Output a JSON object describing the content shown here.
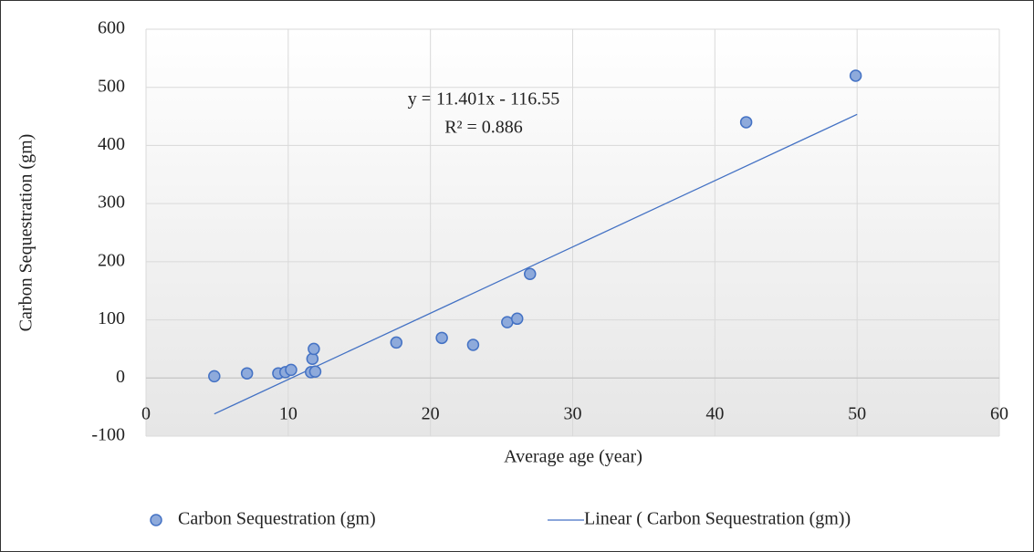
{
  "chart_data": {
    "type": "scatter",
    "x_label": "Average age (year)",
    "y_label": "Carbon Sequestration (gm)",
    "series": [
      {
        "name": "Carbon Sequestration (gm)",
        "color": "#4472c4",
        "fill": "#8eaadb",
        "x": [
          4.8,
          7.1,
          9.3,
          9.8,
          10.2,
          11.6,
          11.7,
          11.8,
          11.9,
          17.6,
          20.8,
          23.0,
          25.4,
          26.1,
          27.0,
          42.2,
          49.9
        ],
        "values": [
          3,
          8,
          8,
          10,
          14,
          10,
          33,
          50,
          11,
          61,
          69,
          57,
          96,
          102,
          179,
          440,
          520
        ]
      }
    ],
    "trendline": {
      "name": "Linear ( Carbon Sequestration (gm))",
      "color": "#4472c4",
      "slope": 11.401,
      "intercept": -116.55,
      "x": [
        4.8,
        50
      ],
      "equation": "y = 11.401x - 116.55",
      "r2": "R² = 0.886"
    },
    "xlim": [
      0,
      60
    ],
    "xticks": [
      0,
      10,
      20,
      30,
      40,
      50,
      60
    ],
    "ylim": [
      -100,
      600
    ],
    "yticks": [
      -100,
      0,
      100,
      200,
      300,
      400,
      500,
      600
    ],
    "grid": true,
    "legend": "bottom"
  }
}
